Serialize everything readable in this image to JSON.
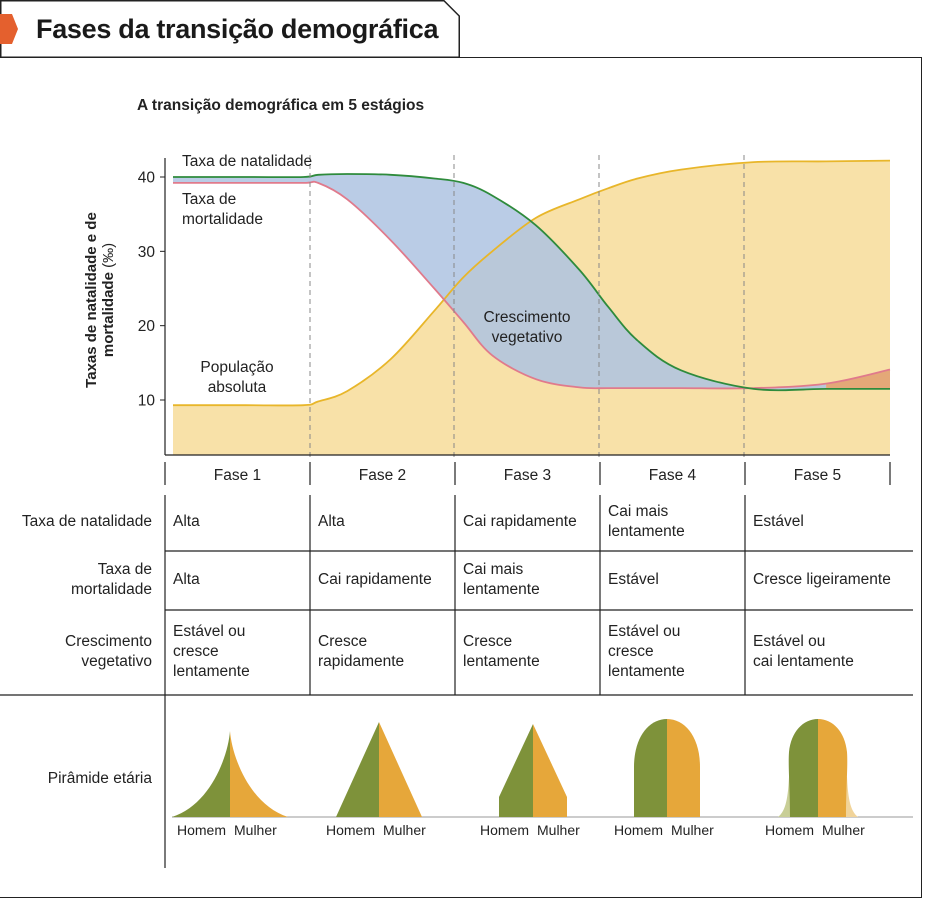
{
  "page": {
    "title": "Fases da transição demográfica",
    "accent_color": "#e4602e"
  },
  "chart_data": {
    "type": "line",
    "title": "A transição demográfica em 5 estágios",
    "ylabel_bold": "Taxas de natalidade e de mortalidade",
    "ylabel_unit": "(‰)",
    "yticks": [
      10,
      20,
      30,
      40
    ],
    "ylim": [
      3,
      43
    ],
    "grid": false,
    "phases": [
      "Fase 1",
      "Fase 2",
      "Fase 3",
      "Fase 4",
      "Fase 5"
    ],
    "x": [
      0,
      0.5,
      0.9,
      1.0,
      1.2,
      1.5,
      1.8,
      2.0,
      2.2,
      2.5,
      2.8,
      3.0,
      3.2,
      3.5,
      4.0,
      4.5,
      4.94
    ],
    "series": [
      {
        "name": "Taxa de natalidade",
        "color": "#2e8b3c",
        "values": [
          40.0,
          40.0,
          40.0,
          40.3,
          40.4,
          40.3,
          39.8,
          39.2,
          37.5,
          33.5,
          27.5,
          22.5,
          18.0,
          14.0,
          11.5,
          11.5,
          11.5
        ]
      },
      {
        "name": "Taxa de mortalidade",
        "color": "#e07a8c",
        "values": [
          39.2,
          39.2,
          39.2,
          39.2,
          37.0,
          31.5,
          25.0,
          20.5,
          16.0,
          12.8,
          11.7,
          11.6,
          11.6,
          11.6,
          11.6,
          12.2,
          14.1
        ]
      },
      {
        "name": "População absoluta",
        "color": "#e8b62a",
        "values": [
          9.3,
          9.3,
          9.3,
          9.8,
          11.2,
          15.5,
          22.0,
          26.5,
          30.0,
          34.5,
          37.0,
          38.5,
          39.8,
          41.0,
          42.0,
          42.1,
          42.2
        ]
      }
    ],
    "annotations": {
      "natalidade": "Taxa de natalidade",
      "mortalidade_l1": "Taxa de",
      "mortalidade_l2": "mortalidade",
      "crescimento_l1": "Crescimento",
      "crescimento_l2": "vegetativo",
      "populacao_l1": "População",
      "populacao_l2": "absoluta"
    },
    "fill_colors": {
      "population": "#f8e1a8",
      "vegetative_growth": "#aec3e2",
      "negative_growth": "#e4a878"
    }
  },
  "table": {
    "rows": [
      {
        "header": [
          "Taxa de natalidade"
        ],
        "cells": [
          [
            "Alta"
          ],
          [
            "Alta"
          ],
          [
            "Cai rapidamente"
          ],
          [
            "Cai mais",
            "lentamente"
          ],
          [
            "Estável"
          ]
        ]
      },
      {
        "header": [
          "Taxa de",
          "mortalidade"
        ],
        "cells": [
          [
            "Alta"
          ],
          [
            "Cai rapidamente"
          ],
          [
            "Cai mais",
            "lentamente"
          ],
          [
            "Estável"
          ],
          [
            "Cresce ligeiramente"
          ]
        ]
      },
      {
        "header": [
          "Crescimento",
          "vegetativo"
        ],
        "cells": [
          [
            "Estável ou",
            "cresce",
            "lentamente"
          ],
          [
            "Cresce",
            "rapidamente"
          ],
          [
            "Cresce",
            "lentamente"
          ],
          [
            "Estável ou",
            "cresce",
            "lentamente"
          ],
          [
            "Estável ou",
            "cai lentamente"
          ]
        ]
      }
    ],
    "pyramid_row_header": "Pirâmide etária",
    "pyramid_male_label": "Homem",
    "pyramid_female_label": "Mulher",
    "pyramid_colors": {
      "male": "#7e923a",
      "female": "#e6a73a",
      "male_light": "#c8ce96",
      "female_light": "#f1d49a"
    }
  }
}
